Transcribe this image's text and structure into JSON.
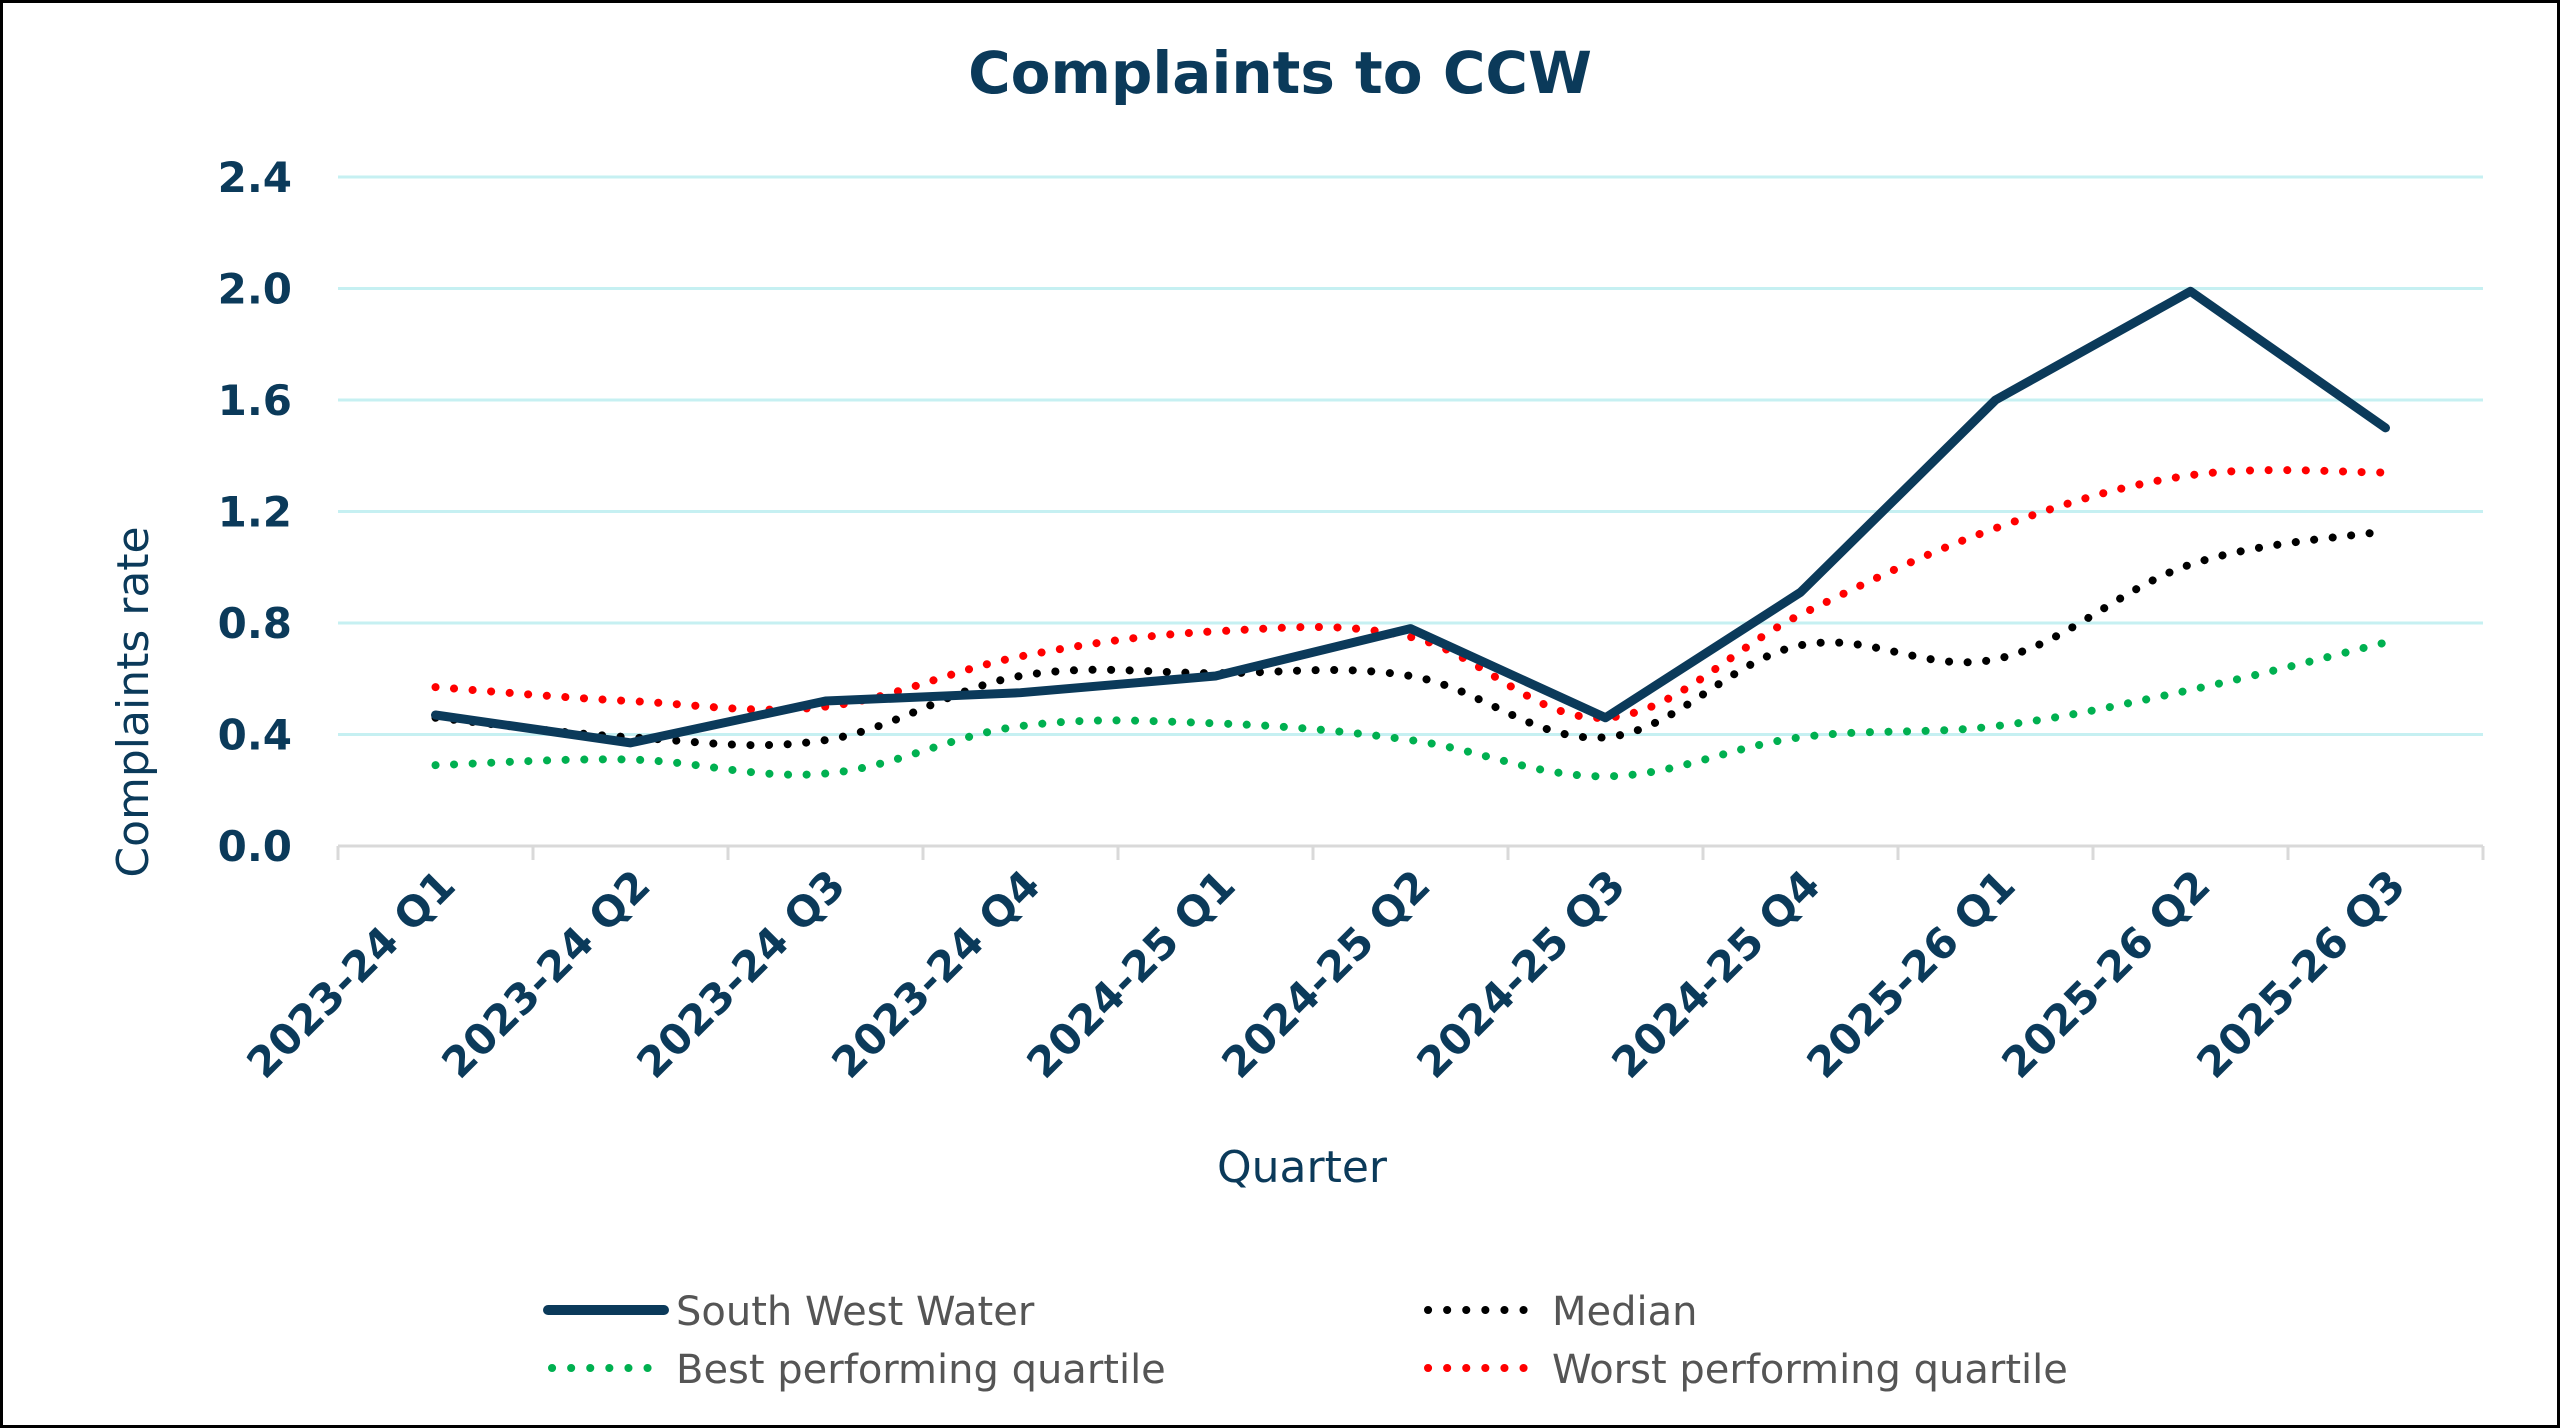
{
  "chart_data": {
    "type": "line",
    "title": "Complaints to CCW",
    "xlabel": "Quarter",
    "ylabel": "Complaints rate",
    "ylim": [
      0,
      2.4
    ],
    "yticks": [
      "0.0",
      "0.4",
      "0.8",
      "1.2",
      "1.6",
      "2.0",
      "2.4"
    ],
    "ytick_values": [
      0,
      0.4,
      0.8,
      1.2,
      1.6,
      2.0,
      2.4
    ],
    "grid": true,
    "legend_position": "bottom",
    "categories": [
      "2023-24 Q1",
      "2023-24 Q2",
      "2023-24 Q3",
      "2023-24 Q4",
      "2024-25 Q1",
      "2024-25 Q2",
      "2024-25 Q3",
      "2024-25 Q4",
      "2025-26 Q1",
      "2025-26 Q2",
      "2025-26 Q3"
    ],
    "series": [
      {
        "name": "South West Water",
        "style": "solid",
        "color": "#0b3a5a",
        "values": [
          0.47,
          0.37,
          0.52,
          0.55,
          0.61,
          0.78,
          0.46,
          0.91,
          1.6,
          1.99,
          1.5
        ]
      },
      {
        "name": "Median",
        "style": "dotted",
        "color": "#000000",
        "values": [
          0.46,
          0.39,
          0.38,
          0.61,
          0.62,
          0.61,
          0.39,
          0.72,
          0.67,
          1.01,
          1.13
        ]
      },
      {
        "name": "Best performing quartile",
        "style": "dotted",
        "color": "#00b050",
        "values": [
          0.29,
          0.31,
          0.26,
          0.43,
          0.44,
          0.38,
          0.25,
          0.39,
          0.43,
          0.56,
          0.73
        ]
      },
      {
        "name": "Worst performing quartile",
        "style": "dotted",
        "color": "#ff0000",
        "values": [
          0.57,
          0.52,
          0.5,
          0.68,
          0.77,
          0.75,
          0.46,
          0.83,
          1.14,
          1.33,
          1.34
        ]
      }
    ]
  },
  "colors": {
    "text": "#0b3a5a",
    "grid": "#c6f0f2",
    "axis": "#d9d9d9",
    "legend_text": "#555555"
  }
}
